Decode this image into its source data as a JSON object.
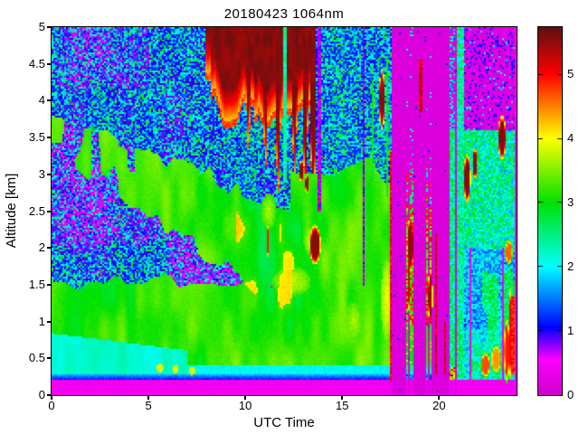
{
  "chart_data": {
    "type": "heatmap",
    "title": "20180423 1064nm",
    "xlabel": "UTC Time",
    "ylabel": "Altitude [km]",
    "x_range_hours": [
      0,
      24
    ],
    "y_range_km": [
      0,
      5
    ],
    "x_ticks": [
      0,
      5,
      10,
      15,
      20
    ],
    "y_ticks": [
      0,
      0.5,
      1,
      1.5,
      2,
      2.5,
      3,
      3.5,
      4,
      4.5,
      5
    ],
    "grid": false,
    "legend": "none",
    "colorbar": {
      "min": 0,
      "max": 5.73,
      "ticks": [
        0,
        1,
        2,
        3,
        4,
        5
      ],
      "position": "right"
    },
    "colormap_stops": [
      [
        0.0,
        [
          205,
          0,
          205
        ]
      ],
      [
        0.55,
        [
          255,
          0,
          255
        ]
      ],
      [
        1.05,
        [
          0,
          0,
          255
        ]
      ],
      [
        2.0,
        [
          0,
          255,
          255
        ]
      ],
      [
        3.0,
        [
          0,
          225,
          0
        ]
      ],
      [
        4.0,
        [
          255,
          255,
          0
        ]
      ],
      [
        5.0,
        [
          255,
          0,
          0
        ]
      ],
      [
        5.73,
        [
          95,
          16,
          16
        ]
      ]
    ],
    "features": {
      "speckle": {
        "clear_base": 0.25,
        "clear_amp": 2.25
      },
      "surface_strip": {
        "top_km": 0.21,
        "value": 0.37
      },
      "gradient_bands": {
        "violet_top_km": 0.3,
        "cyan_top_km": 0.42
      },
      "boundary_layer": {
        "t_end": 17.55,
        "top_km": 1.55,
        "value": 2.8,
        "cyan_band": {
          "z0": 0.24,
          "z1": 0.85,
          "t_end": 7.0,
          "value": 2.0
        }
      },
      "descending_band": {
        "z_start": 3.55,
        "slope_km_per_h": -0.135,
        "half_width0": 0.25,
        "half_width_growth": 0.035,
        "t_patchy_end": 4.3,
        "t_end": 12.6,
        "value": 2.85
      },
      "merged_layer": {
        "t0": 12.3,
        "t1": 17.55,
        "top_km": 3.08,
        "value": 2.85
      },
      "cloud": {
        "t0": 7.9,
        "t1": 13.62,
        "base_bottom_km": 4.5,
        "core_value": 5.62,
        "streak_width_h": 0.16,
        "virga_streaks": [
          [
            8.05,
            4.35
          ],
          [
            8.3,
            4.1
          ],
          [
            8.6,
            4.0
          ],
          [
            9.3,
            4.05
          ],
          [
            10.15,
            3.45
          ],
          [
            10.55,
            3.75
          ],
          [
            11.05,
            3.2
          ],
          [
            11.7,
            2.85
          ],
          [
            12.55,
            3.0
          ],
          [
            13.1,
            2.75
          ],
          [
            13.5,
            2.35
          ]
        ]
      },
      "dead_zone": {
        "t0": 17.55,
        "t1": 20.9,
        "value": 0.12,
        "active_slots": [
          [
            18.33,
            18.42,
            1
          ],
          [
            18.47,
            18.57,
            1
          ],
          [
            18.62,
            18.72,
            1
          ],
          [
            19.32,
            19.42,
            1
          ],
          [
            19.5,
            19.62,
            1
          ],
          [
            20.55,
            20.8,
            0
          ]
        ],
        "red_lines": [
          [
            17.51,
            0.2,
            4.2
          ],
          [
            19.82,
            0.3,
            2.2
          ],
          [
            19.05,
            3.85,
            4.55
          ],
          [
            20.3,
            0.3,
            1.0
          ]
        ]
      },
      "recovery_column": {
        "t0": 20.9,
        "t1": 21.3,
        "value": 1.6
      },
      "right_section": {
        "t0": 21.3,
        "purple_above_km": 3.6,
        "purple_lines_t": [
          21.6,
          23.3
        ],
        "edge_purple_t": 23.88,
        "red_streak": [
          23.76,
          23.86,
          0.3,
          1.35
        ]
      },
      "vertical_columns": [
        [
          11.95,
          12.15,
          2.9,
          5.0,
          2.1,
          0
        ],
        [
          13.72,
          13.92,
          2.5,
          5.0,
          0.45,
          1
        ],
        [
          16.05,
          16.13,
          1.5,
          5.0,
          0.55,
          0
        ],
        [
          16.52,
          16.6,
          2.9,
          4.3,
          2.6,
          0
        ],
        [
          17.3,
          17.38,
          2.7,
          4.6,
          2.6,
          0
        ]
      ],
      "edge_red_line": [
        17.47,
        17.55,
        0.2,
        3.3
      ],
      "yellow_patches": [
        [
          5.6,
          0.38,
          0.18,
          0.07,
          4.0
        ],
        [
          6.4,
          0.36,
          0.15,
          0.06,
          4.0
        ],
        [
          7.25,
          0.34,
          0.2,
          0.06,
          3.9
        ],
        [
          13.35,
          2.1,
          0.35,
          0.2,
          3.6
        ],
        [
          15.6,
          1.0,
          0.5,
          0.3,
          3.5
        ],
        [
          17.3,
          1.3,
          0.3,
          0.55,
          3.8
        ],
        [
          11.2,
          2.5,
          0.4,
          0.25,
          3.5
        ],
        [
          12.4,
          1.55,
          1.0,
          0.2,
          3.6
        ]
      ],
      "red_blobs": [
        [
          12.9,
          3.05,
          0.08,
          0.1,
          5.55
        ],
        [
          13.18,
          2.88,
          0.06,
          0.09,
          5.5
        ],
        [
          13.6,
          2.05,
          0.2,
          0.18,
          5.55
        ],
        [
          11.15,
          2.1,
          0.04,
          0.15,
          4.9
        ],
        [
          17.05,
          4.02,
          0.1,
          0.28,
          5.55
        ],
        [
          18.52,
          2.05,
          0.12,
          0.25,
          5.5
        ],
        [
          18.45,
          1.6,
          0.05,
          0.3,
          5.2
        ],
        [
          19.55,
          1.35,
          0.08,
          0.25,
          5.45
        ],
        [
          21.45,
          2.95,
          0.12,
          0.22,
          5.55
        ],
        [
          21.85,
          3.15,
          0.09,
          0.14,
          5.5
        ],
        [
          23.25,
          3.5,
          0.14,
          0.2,
          5.55
        ],
        [
          23.6,
          1.95,
          0.13,
          0.12,
          4.6
        ],
        [
          22.4,
          0.42,
          0.16,
          0.12,
          4.7
        ],
        [
          22.95,
          0.5,
          0.2,
          0.14,
          4.4
        ],
        [
          23.5,
          0.62,
          0.1,
          0.3,
          4.9
        ],
        [
          23.7,
          0.85,
          0.06,
          0.45,
          5.0
        ]
      ]
    }
  }
}
